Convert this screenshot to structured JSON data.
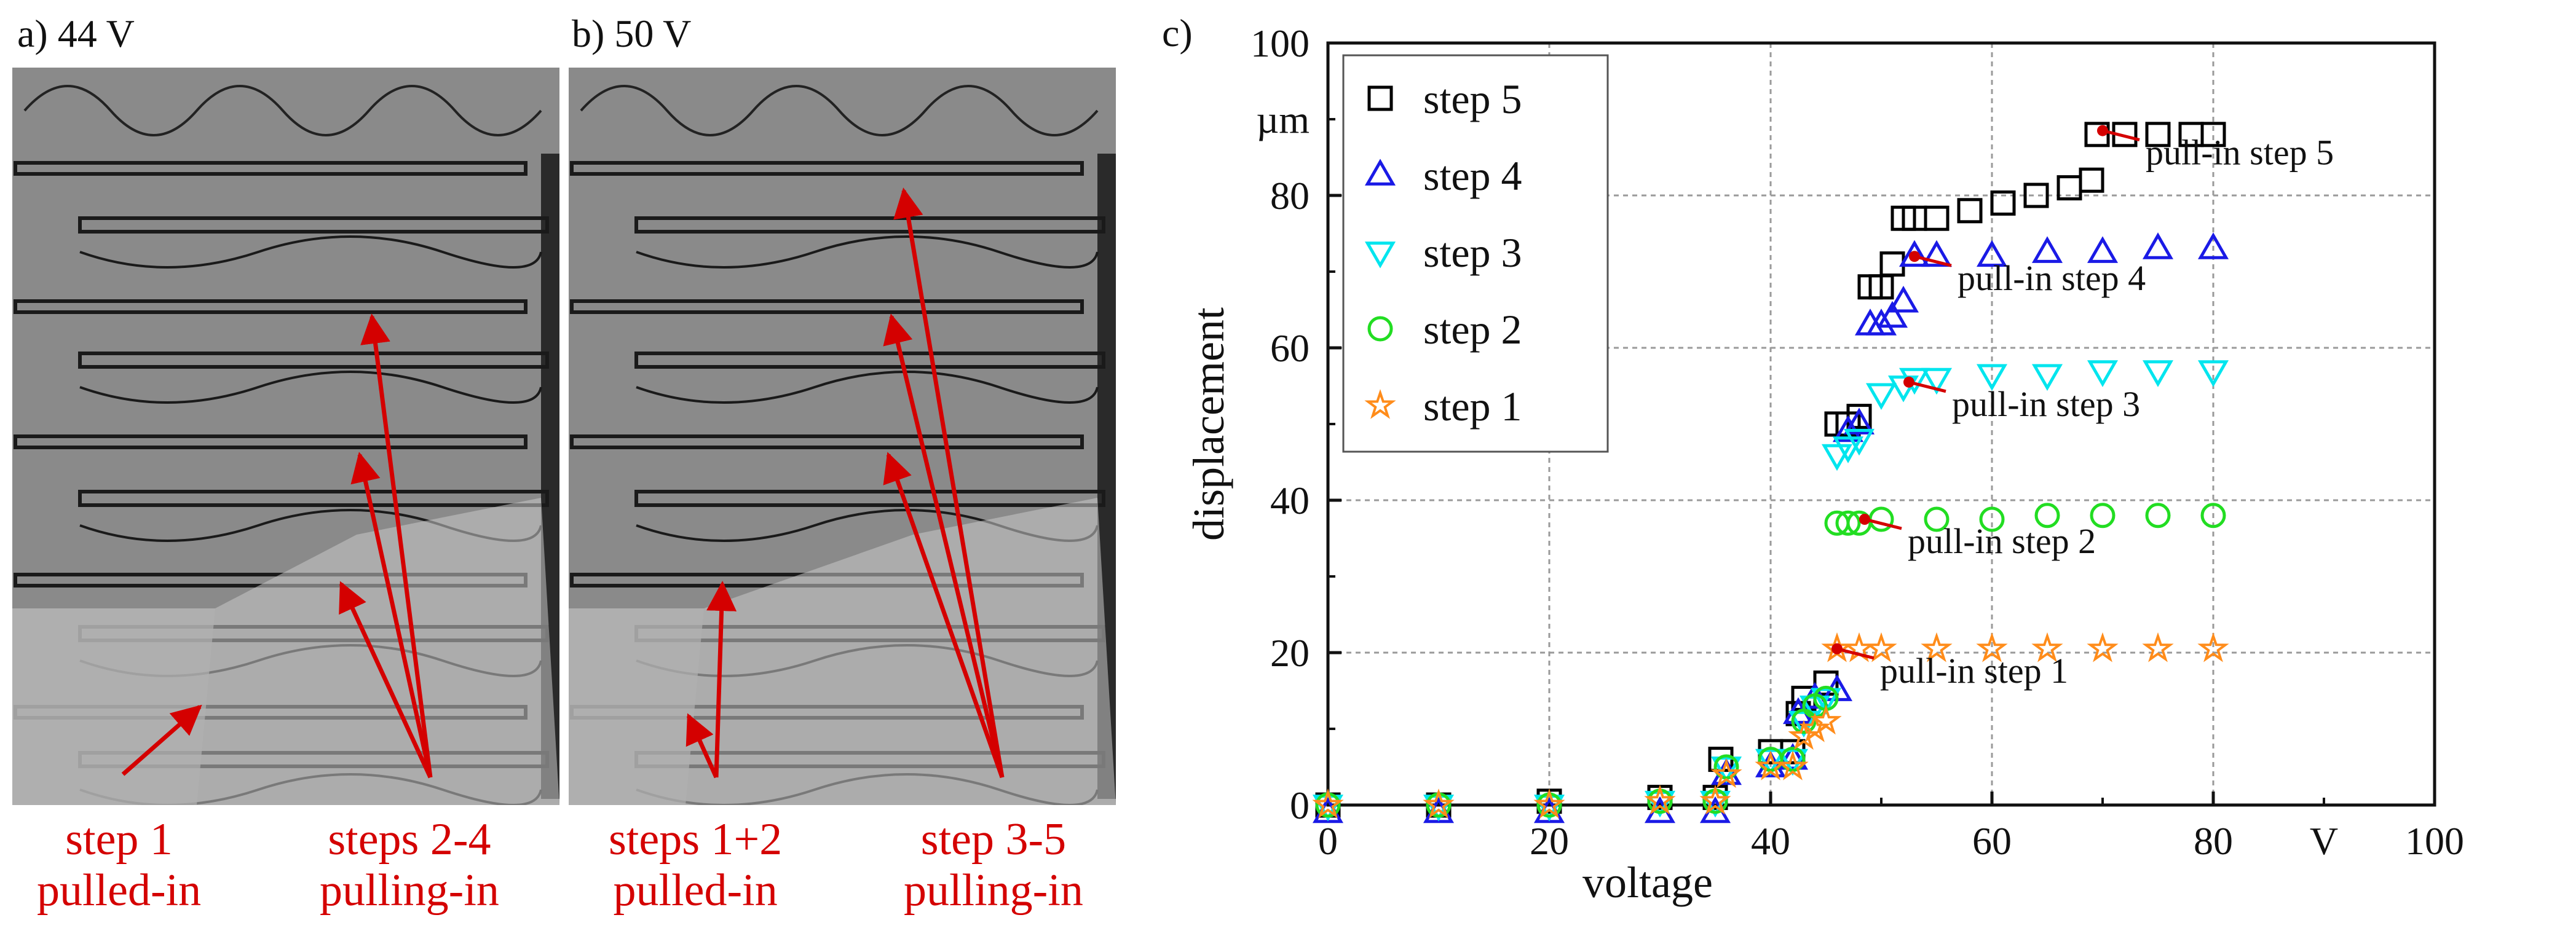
{
  "panels": {
    "a": {
      "label": "a) 44 V",
      "caption_left": [
        "step 1",
        "pulled-in"
      ],
      "caption_right": [
        "steps 2-4",
        "pulling-in"
      ]
    },
    "b": {
      "label": "b) 50 V",
      "caption_left": [
        "steps 1+2",
        "pulled-in"
      ],
      "caption_right": [
        "step 3-5",
        "pulling-in"
      ]
    },
    "c": {
      "label": "c)"
    }
  },
  "colors": {
    "arrow": "#d40000",
    "step5": "#000000",
    "step4": "#1a1ae6",
    "step3": "#00e5ee",
    "step2": "#22dd22",
    "step1": "#ff8c1a",
    "pullin_marker": "#d40000"
  },
  "chart_data": {
    "type": "scatter",
    "title": "",
    "xlabel": "voltage",
    "ylabel": "displacement",
    "x_unit": "V",
    "y_unit": "µm",
    "xlim": [
      0,
      100
    ],
    "ylim": [
      0,
      100
    ],
    "xticks": [
      0,
      20,
      40,
      60,
      80,
      100
    ],
    "yticks": [
      0,
      20,
      40,
      60,
      80,
      100
    ],
    "grid": true,
    "legend_position": "top-left",
    "series": [
      {
        "name": "step 5",
        "marker": "square",
        "x": [
          0,
          10,
          20,
          30,
          35,
          35.5,
          40,
          42,
          42.5,
          43,
          45,
          46,
          47,
          48,
          49,
          50,
          51,
          52,
          53,
          55,
          58,
          61,
          64,
          67,
          69,
          69.5,
          72,
          75,
          78,
          80
        ],
        "y": [
          0,
          0,
          0.5,
          1,
          1,
          6,
          7,
          7,
          12,
          14,
          16,
          50,
          50,
          51,
          68,
          68,
          71,
          77,
          77,
          77,
          78,
          79,
          80,
          81,
          82,
          88,
          88,
          88,
          88,
          88
        ]
      },
      {
        "name": "step 4",
        "marker": "triangle-up",
        "x": [
          0,
          10,
          20,
          30,
          35,
          36,
          40,
          42,
          42.5,
          44,
          46,
          47,
          48,
          49,
          50,
          51,
          52,
          53,
          55,
          60,
          65,
          70,
          75,
          80
        ],
        "y": [
          -1,
          -1,
          -1,
          -1,
          -1,
          4,
          5,
          6,
          12,
          14,
          15,
          49,
          50,
          63,
          63,
          64,
          66,
          72,
          72,
          72,
          72.5,
          72.5,
          73,
          73
        ]
      },
      {
        "name": "step 3",
        "marker": "triangle-down",
        "x": [
          0,
          10,
          20,
          30,
          35,
          36,
          40,
          42,
          43,
          44,
          45,
          46,
          47,
          48,
          50,
          52,
          53,
          55,
          60,
          65,
          70,
          75,
          80
        ],
        "y": [
          0,
          0,
          0,
          0.5,
          0.5,
          5,
          6,
          6,
          11,
          13,
          14,
          46,
          47,
          48,
          54,
          55,
          56,
          56,
          56.5,
          56.5,
          57,
          57,
          57
        ]
      },
      {
        "name": "step 2",
        "marker": "circle",
        "x": [
          0,
          10,
          20,
          30,
          35,
          36,
          40,
          42,
          43,
          44,
          45,
          46,
          47,
          48,
          50,
          55,
          60,
          65,
          70,
          75,
          80
        ],
        "y": [
          0,
          0,
          0,
          0.5,
          0.5,
          5,
          6,
          6,
          11,
          13,
          14,
          37,
          37,
          37,
          37.5,
          37.5,
          37.5,
          38,
          38,
          38,
          38
        ]
      },
      {
        "name": "step 1",
        "marker": "star",
        "x": [
          0,
          10,
          20,
          30,
          35,
          36,
          40,
          42,
          43,
          44,
          45,
          46,
          48,
          50,
          55,
          60,
          65,
          70,
          75,
          80
        ],
        "y": [
          0,
          0,
          0,
          0.5,
          0.5,
          4,
          5,
          5,
          9,
          10,
          11,
          20.5,
          20.5,
          20.5,
          20.5,
          20.5,
          20.5,
          20.5,
          20.5,
          20.5
        ]
      }
    ],
    "annotations": [
      {
        "text": "pull-in step 5",
        "x": 70,
        "y": 88.5
      },
      {
        "text": "pull-in step 4",
        "x": 53,
        "y": 72
      },
      {
        "text": "pull-in step 3",
        "x": 52.5,
        "y": 55.5
      },
      {
        "text": "pull-in step 2",
        "x": 48.5,
        "y": 37.5
      },
      {
        "text": "pull-in step 1",
        "x": 46,
        "y": 20.5
      }
    ]
  }
}
